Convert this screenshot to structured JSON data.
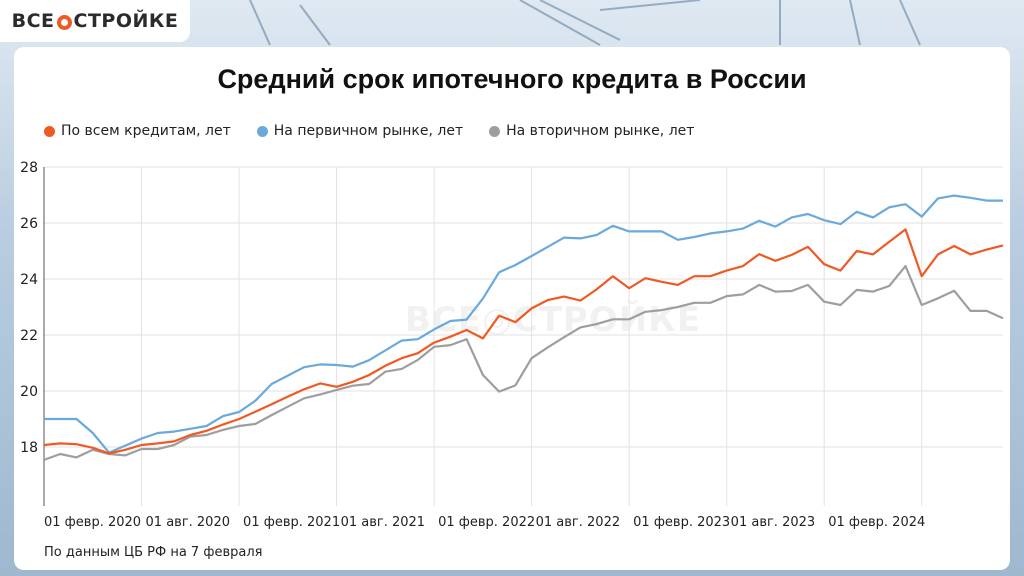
{
  "logo": {
    "text_left": "ВСЕ",
    "text_right": "СТРОЙКЕ"
  },
  "watermark": "ВСЕ◎СТРОЙКЕ",
  "footer": "По данным ЦБ РФ на 7 февраля",
  "colors": {
    "all": "#ef5a24",
    "primary": "#6aa9dc",
    "secondary": "#9e9e9e",
    "grid": "#e2e2e2"
  },
  "chart_data": {
    "type": "line",
    "title": "Средний срок ипотечного кредита в России",
    "xlabel": "",
    "ylabel": "",
    "ylim": [
      16,
      28
    ],
    "yticks": [
      18,
      20,
      22,
      24,
      26,
      28
    ],
    "grid": true,
    "legend_position": "top-left",
    "x_start": "2020-02",
    "x_step": "1 month",
    "xtick_labels": [
      "01 февр. 2020",
      "01 авг. 2020",
      "01 февр. 2021",
      "01 авг. 2021",
      "01 февр. 2022",
      "01 авг. 2022",
      "01 февр. 2023",
      "01 авг. 2023",
      "01 февр. 2024",
      ""
    ],
    "series": [
      {
        "name": "По всем кредитам, лет",
        "color": "#ef5a24",
        "values": [
          18.07,
          18.13,
          18.1,
          17.97,
          17.77,
          17.9,
          18.07,
          18.13,
          18.2,
          18.43,
          18.58,
          18.8,
          19.0,
          19.26,
          19.53,
          19.8,
          20.06,
          20.27,
          20.15,
          20.33,
          20.57,
          20.9,
          21.17,
          21.35,
          21.73,
          21.94,
          22.18,
          21.88,
          22.69,
          22.46,
          22.95,
          23.25,
          23.37,
          23.23,
          23.63,
          24.1,
          23.67,
          24.03,
          23.9,
          23.79,
          24.1,
          24.1,
          24.3,
          24.46,
          24.89,
          24.65,
          24.86,
          25.15,
          24.53,
          24.3,
          25.0,
          24.88,
          25.33,
          25.77,
          24.1,
          24.88,
          25.18,
          24.88,
          25.05,
          25.2
        ]
      },
      {
        "name": "На первичном рынке, лет",
        "color": "#6aa9dc",
        "values": [
          19.0,
          19.0,
          19.0,
          18.5,
          17.8,
          18.05,
          18.3,
          18.5,
          18.55,
          18.65,
          18.75,
          19.1,
          19.25,
          19.65,
          20.25,
          20.55,
          20.85,
          20.95,
          20.93,
          20.87,
          21.1,
          21.45,
          21.8,
          21.85,
          22.2,
          22.5,
          22.55,
          23.3,
          24.24,
          24.5,
          24.82,
          25.15,
          25.48,
          25.45,
          25.57,
          25.9,
          25.7,
          25.7,
          25.7,
          25.4,
          25.5,
          25.63,
          25.7,
          25.8,
          26.08,
          25.87,
          26.2,
          26.32,
          26.1,
          25.96,
          26.4,
          26.2,
          26.56,
          26.67,
          26.23,
          26.88,
          26.98,
          26.9,
          26.8,
          26.8
        ]
      },
      {
        "name": "На вторичном рынке, лет",
        "color": "#9e9e9e",
        "values": [
          17.54,
          17.75,
          17.63,
          17.9,
          17.75,
          17.7,
          17.93,
          17.93,
          18.07,
          18.37,
          18.43,
          18.61,
          18.75,
          18.82,
          19.14,
          19.44,
          19.74,
          19.88,
          20.04,
          20.19,
          20.25,
          20.69,
          20.79,
          21.11,
          21.58,
          21.64,
          21.85,
          20.57,
          19.98,
          20.2,
          21.17,
          21.56,
          21.92,
          22.27,
          22.39,
          22.56,
          22.56,
          22.83,
          22.89,
          23.0,
          23.15,
          23.15,
          23.39,
          23.45,
          23.79,
          23.55,
          23.57,
          23.79,
          23.19,
          23.07,
          23.61,
          23.55,
          23.75,
          24.46,
          23.07,
          23.31,
          23.58,
          22.86,
          22.86,
          22.6
        ]
      }
    ]
  }
}
